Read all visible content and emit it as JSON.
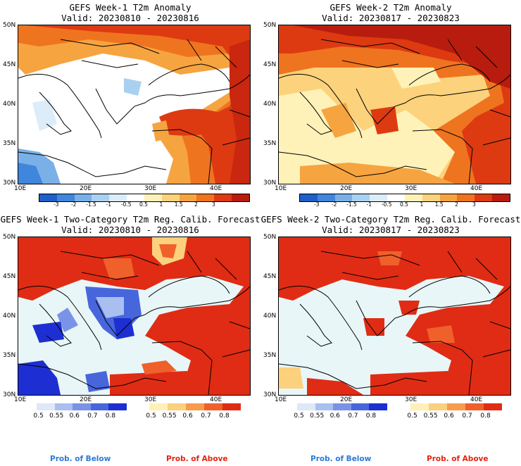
{
  "panels": [
    {
      "title": "GEFS Week-1 T2m Anomaly",
      "valid": "Valid: 20230810 - 20230816"
    },
    {
      "title": "GEFS Week-2 T2m Anomaly",
      "valid": "Valid: 20230817 - 20230823"
    },
    {
      "title": "GEFS Week-1 Two-Category T2m Reg. Calib. Forecast",
      "valid": "Valid: 20230810 - 20230816"
    },
    {
      "title": "GEFS Week-2 Two-Category T2m Reg. Calib. Forecast",
      "valid": "Valid: 20230817 - 20230823"
    }
  ],
  "lat_labels": [
    "50N",
    "45N",
    "40N",
    "35N",
    "30N"
  ],
  "lon_labels": [
    "10E",
    "20E",
    "30E",
    "40E"
  ],
  "anomaly_ticks": [
    "-3",
    "-2",
    "-1.5",
    "-1",
    "-0.5",
    "0.5",
    "1",
    "1.5",
    "2",
    "3"
  ],
  "anomaly_colors": [
    "#1f5fc8",
    "#3f86dc",
    "#79b0e8",
    "#a9d0f0",
    "#dcecf8",
    "#ffffff",
    "#fff2b8",
    "#fcd27c",
    "#f6a440",
    "#ef7420",
    "#dd3a12",
    "#b81c0e"
  ],
  "prob_ticks": [
    "0.5",
    "0.55",
    "0.6",
    "0.7",
    "0.8"
  ],
  "below_colors": [
    "#dde8f8",
    "#a9bff0",
    "#7a93e6",
    "#4866dc",
    "#1d2fd2"
  ],
  "above_colors": [
    "#fff0b8",
    "#fcd07c",
    "#f79b4c",
    "#f0602a",
    "#e02c14"
  ],
  "footer": {
    "below": "Prob. of Below",
    "above": "Prob. of Above"
  }
}
